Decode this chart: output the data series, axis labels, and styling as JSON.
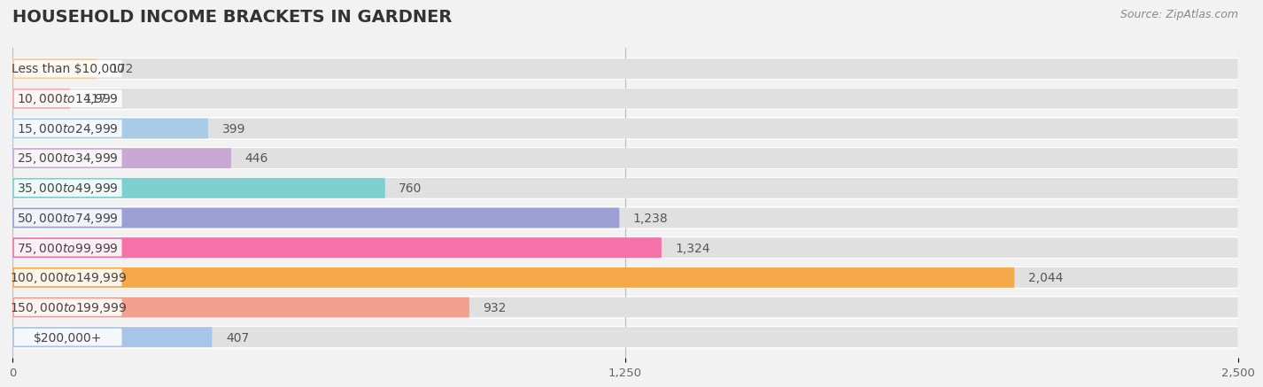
{
  "title": "HOUSEHOLD INCOME BRACKETS IN GARDNER",
  "source": "Source: ZipAtlas.com",
  "categories": [
    "Less than $10,000",
    "$10,000 to $14,999",
    "$15,000 to $24,999",
    "$25,000 to $34,999",
    "$35,000 to $49,999",
    "$50,000 to $74,999",
    "$75,000 to $99,999",
    "$100,000 to $149,999",
    "$150,000 to $199,999",
    "$200,000+"
  ],
  "values": [
    172,
    117,
    399,
    446,
    760,
    1238,
    1324,
    2044,
    932,
    407
  ],
  "bar_colors": [
    "#f9c89b",
    "#f4a9a8",
    "#a8cce8",
    "#c9a8d4",
    "#7ecfcf",
    "#9b9fd4",
    "#f472a8",
    "#f4a84a",
    "#f4a090",
    "#a8c4e8"
  ],
  "xlim": [
    0,
    2500
  ],
  "xticks": [
    0,
    1250,
    2500
  ],
  "background_color": "#f2f2f2",
  "row_bg_color": "#ffffff",
  "bar_bg_color": "#e0e0e0",
  "title_fontsize": 14,
  "label_fontsize": 10,
  "value_fontsize": 10,
  "source_fontsize": 9
}
